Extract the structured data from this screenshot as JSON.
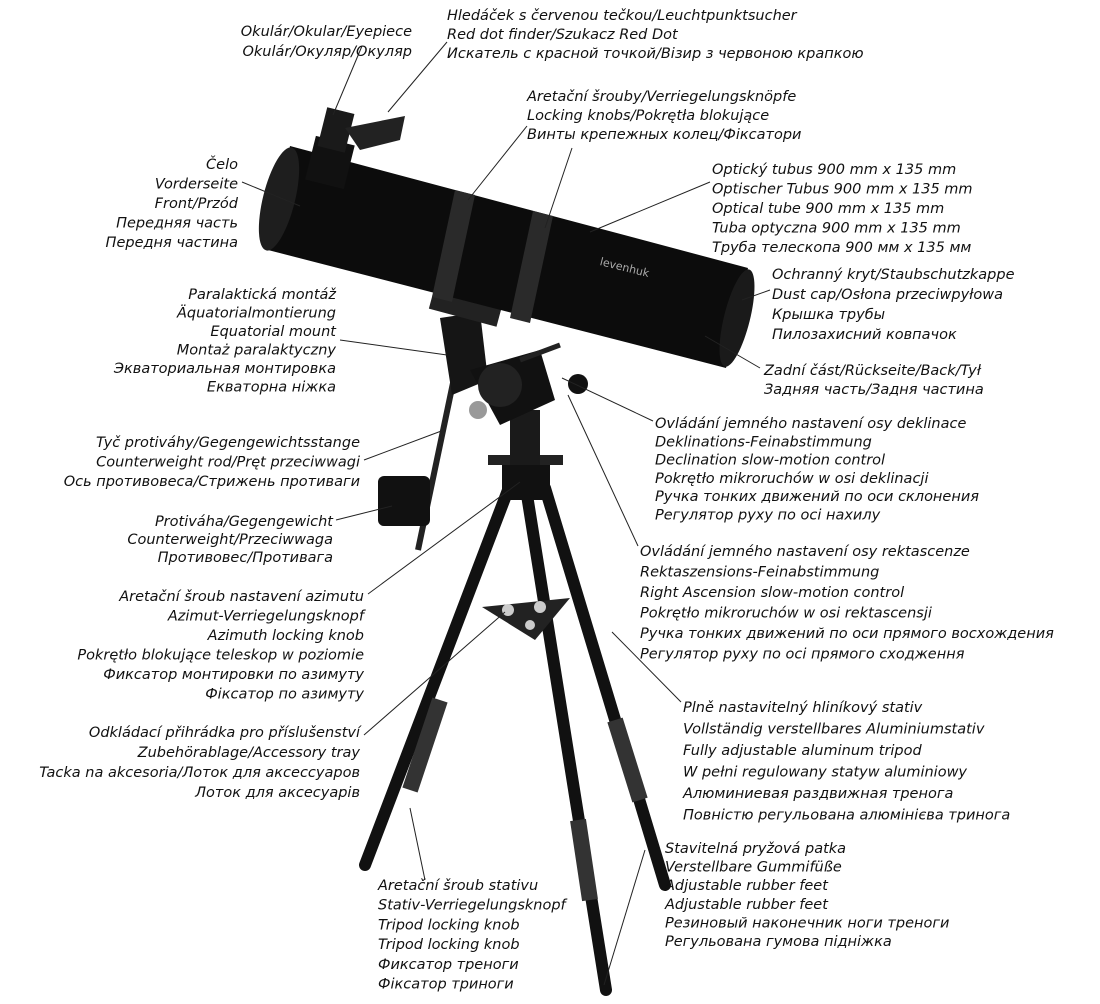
{
  "callouts": {
    "eyepiece": [
      "Okulár/Okular/Eyepiece",
      "Okulár/Окуляр/Окуляр"
    ],
    "finder": [
      "Hledáček s červenou tečkou/Leuchtpunktsucher",
      "Red dot finder/Szukacz Red Dot",
      "Искатель с красной точкой/Візир з червоною крапкою"
    ],
    "knobs": [
      "Aretační šrouby/Verriegelungsknöpfe",
      "Locking knobs/Pokrętła blokujące",
      "Винты крепежных колец/Фіксатори"
    ],
    "front": [
      "Čelo",
      "Vorderseite",
      "Front/Przód",
      "Передняя часть",
      "Передня частина"
    ],
    "tube": [
      "Optický tubus 900 mm x 135 mm",
      "Optischer Tubus 900 mm x 135 mm",
      "Optical tube 900 mm x 135 mm",
      "Tuba optyczna 900 mm x 135 mm",
      "Труба телескопа 900 мм x 135 мм"
    ],
    "dustCap": [
      "Ochranný kryt/Staubschutzkappe",
      "Dust cap/Osłona przeciwpyłowa",
      "Крышка трубы",
      "Пилозахисний ковпачок"
    ],
    "back": [
      "Zadní část/Rückseite/Back/Tył",
      "Задняя часть/Задня частина"
    ],
    "mount": [
      "Paralaktická montáž",
      "Äquatorialmontierung",
      "Equatorial mount",
      "Montaż paralaktyczny",
      "Экваториальная монтировка",
      "Екваторна ніжка"
    ],
    "dec": [
      "Ovládání jemného nastavení osy deklinace",
      "Deklinations-Feinabstimmung",
      "Declination slow-motion control",
      "Pokrętło mikroruchów w osi deklinacji",
      "Ручка тонких движений по оси склонения",
      "Регулятор руху по осі нахилу"
    ],
    "rod": [
      "Tyč protiváhy/Gegengewichtsstange",
      "Counterweight rod/Pręt przeciwwagi",
      "Ось противовеса/Стрижень противаги"
    ],
    "counterweight": [
      "Protiváha/Gegengewicht",
      "Counterweight/Przeciwwaga",
      "Противовес/Противага"
    ],
    "ra": [
      "Ovládání jemného nastavení osy rektascenze",
      "Rektaszensions-Feinabstimmung",
      "Right Ascension slow-motion control",
      "Pokrętło mikroruchów w osi rektascensji",
      "Ручка тонких движений по оси прямого восхождения",
      "Регулятор руху по осі прямого сходження"
    ],
    "azimuth": [
      "Aretační šroub nastavení azimutu",
      "Azimut-Verriegelungsknopf",
      "Azimuth locking knob",
      "Pokrętło blokujące teleskop w poziomie",
      "Фиксатор монтировки по азимуту",
      "Фіксатор по азимуту"
    ],
    "tripod": [
      "Plně nastavitelný hliníkový stativ",
      "Vollständig verstellbares Aluminiumstativ",
      "Fully adjustable aluminum tripod",
      "W pełni regulowany statyw aluminiowy",
      "Алюминиевая раздвижная тренога",
      "Повністю регульована алюмінієва тринога"
    ],
    "tray": [
      "Odkládací přihrádka pro příslušenství",
      "Zubehörablage/Accessory tray",
      "Tacka na akcesoria/Лоток для аксессуаров",
      "Лоток для аксесуарів"
    ],
    "tripodKnob": [
      "Aretační šroub stativu",
      "Stativ-Verriegelungsknopf",
      "Tripod locking knob",
      "Tripod locking knob",
      "Фиксатор треноги",
      "Фіксатор триноги"
    ],
    "feet": [
      "Stavitelná pryžová patka",
      "Verstellbare Gummifüße",
      "Adjustable rubber feet",
      "Adjustable rubber feet",
      "Резиновый наконечник ноги треноги",
      "Регульована гумова підніжка"
    ]
  }
}
